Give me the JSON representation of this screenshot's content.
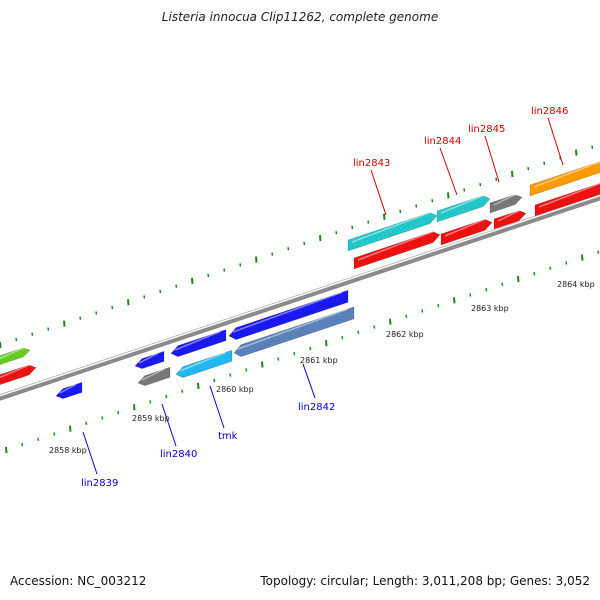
{
  "title": "Listeria innocua Clip11262, complete genome",
  "footer": {
    "accession": "Accession: NC_003212",
    "summary": "Topology: circular; Length: 3,011,208 bp; Genes: 3,052"
  },
  "colors": {
    "backbone": "#8a8a8a",
    "tick": "#1a8a1a",
    "forward_label": "#cc0000",
    "reverse_label": "#0000cc",
    "cyan": "#22c8c8",
    "red": "#ee1111",
    "gray": "#777777",
    "orange": "#ff9900",
    "blue": "#1a1aee",
    "light_blue": "#22b8ee",
    "steel_blue": "#5a82b8",
    "green": "#66cc22"
  },
  "scale_labels": [
    "2858 kbp",
    "2859 kbp",
    "2860 kbp",
    "2861 kbp",
    "2862 kbp",
    "2863 kbp",
    "2864 kbp"
  ],
  "gene_labels_forward": [
    "lin2843",
    "lin2844",
    "lin2845",
    "lin2846"
  ],
  "gene_labels_reverse": [
    "lin2839",
    "lin2840",
    "tmk",
    "lin2842"
  ]
}
